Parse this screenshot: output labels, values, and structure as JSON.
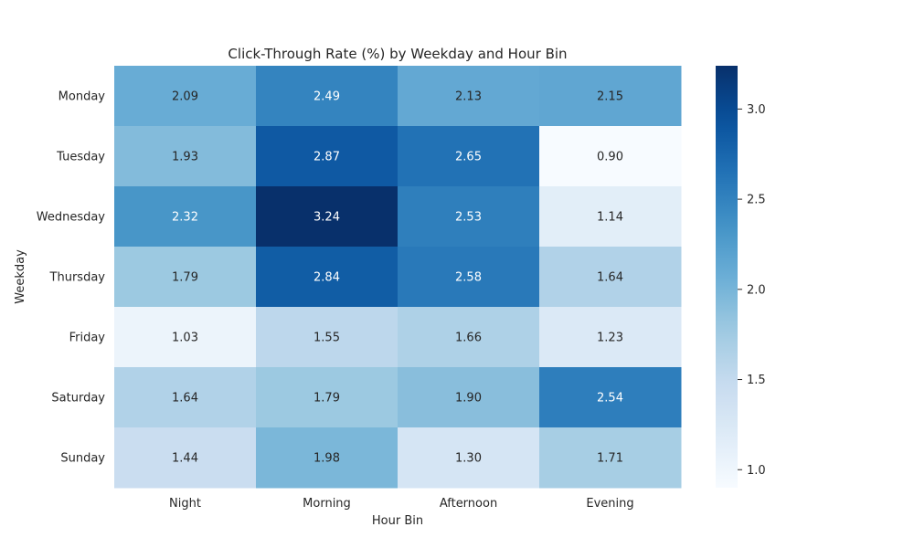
{
  "chart_data": {
    "type": "heatmap",
    "title": "Click-Through Rate (%) by Weekday and Hour Bin",
    "xlabel": "Hour Bin",
    "ylabel": "Weekday",
    "x_categories": [
      "Night",
      "Morning",
      "Afternoon",
      "Evening"
    ],
    "y_categories": [
      "Monday",
      "Tuesday",
      "Wednesday",
      "Thursday",
      "Friday",
      "Saturday",
      "Sunday"
    ],
    "values": [
      [
        2.09,
        2.49,
        2.13,
        2.15
      ],
      [
        1.93,
        2.87,
        2.65,
        0.9
      ],
      [
        2.32,
        3.24,
        2.53,
        1.14
      ],
      [
        1.79,
        2.84,
        2.58,
        1.64
      ],
      [
        1.03,
        1.55,
        1.66,
        1.23
      ],
      [
        1.64,
        1.79,
        1.9,
        2.54
      ],
      [
        1.44,
        1.98,
        1.3,
        1.71
      ]
    ],
    "colorbar": {
      "min": 0.9,
      "max": 3.24,
      "ticks": [
        "1.0",
        "1.5",
        "2.0",
        "2.5",
        "3.0"
      ],
      "colormap": "Blues"
    },
    "grid": false
  }
}
